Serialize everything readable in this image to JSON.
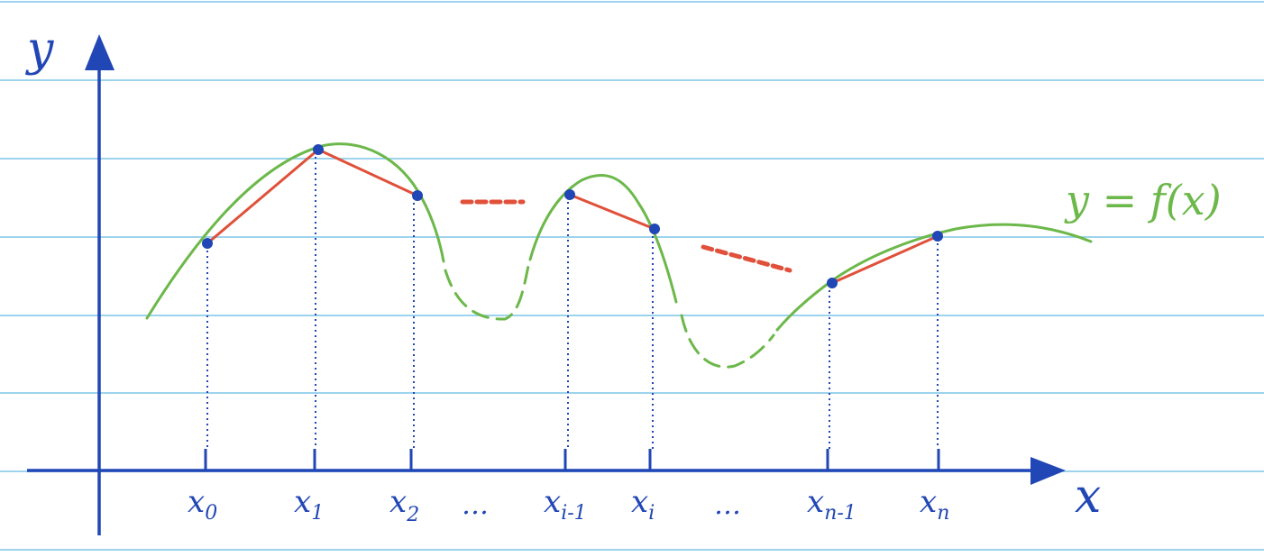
{
  "colors": {
    "paper_lines": "#9ed3ee",
    "axis": "#2146b5",
    "curve": "#6cb84a",
    "chord": "#e0503a",
    "points": "#2146b5"
  },
  "axes": {
    "x_label": "x",
    "y_label": "y"
  },
  "curve_label": "y = f(x)",
  "x_ticks": [
    {
      "base": "x",
      "sub": "0"
    },
    {
      "base": "x",
      "sub": "1"
    },
    {
      "base": "x",
      "sub": "2"
    },
    {
      "base": "…",
      "sub": ""
    },
    {
      "base": "x",
      "sub": "i-1"
    },
    {
      "base": "x",
      "sub": "i"
    },
    {
      "base": "…",
      "sub": ""
    },
    {
      "base": "x",
      "sub": "n-1"
    },
    {
      "base": "x",
      "sub": "n"
    }
  ]
}
